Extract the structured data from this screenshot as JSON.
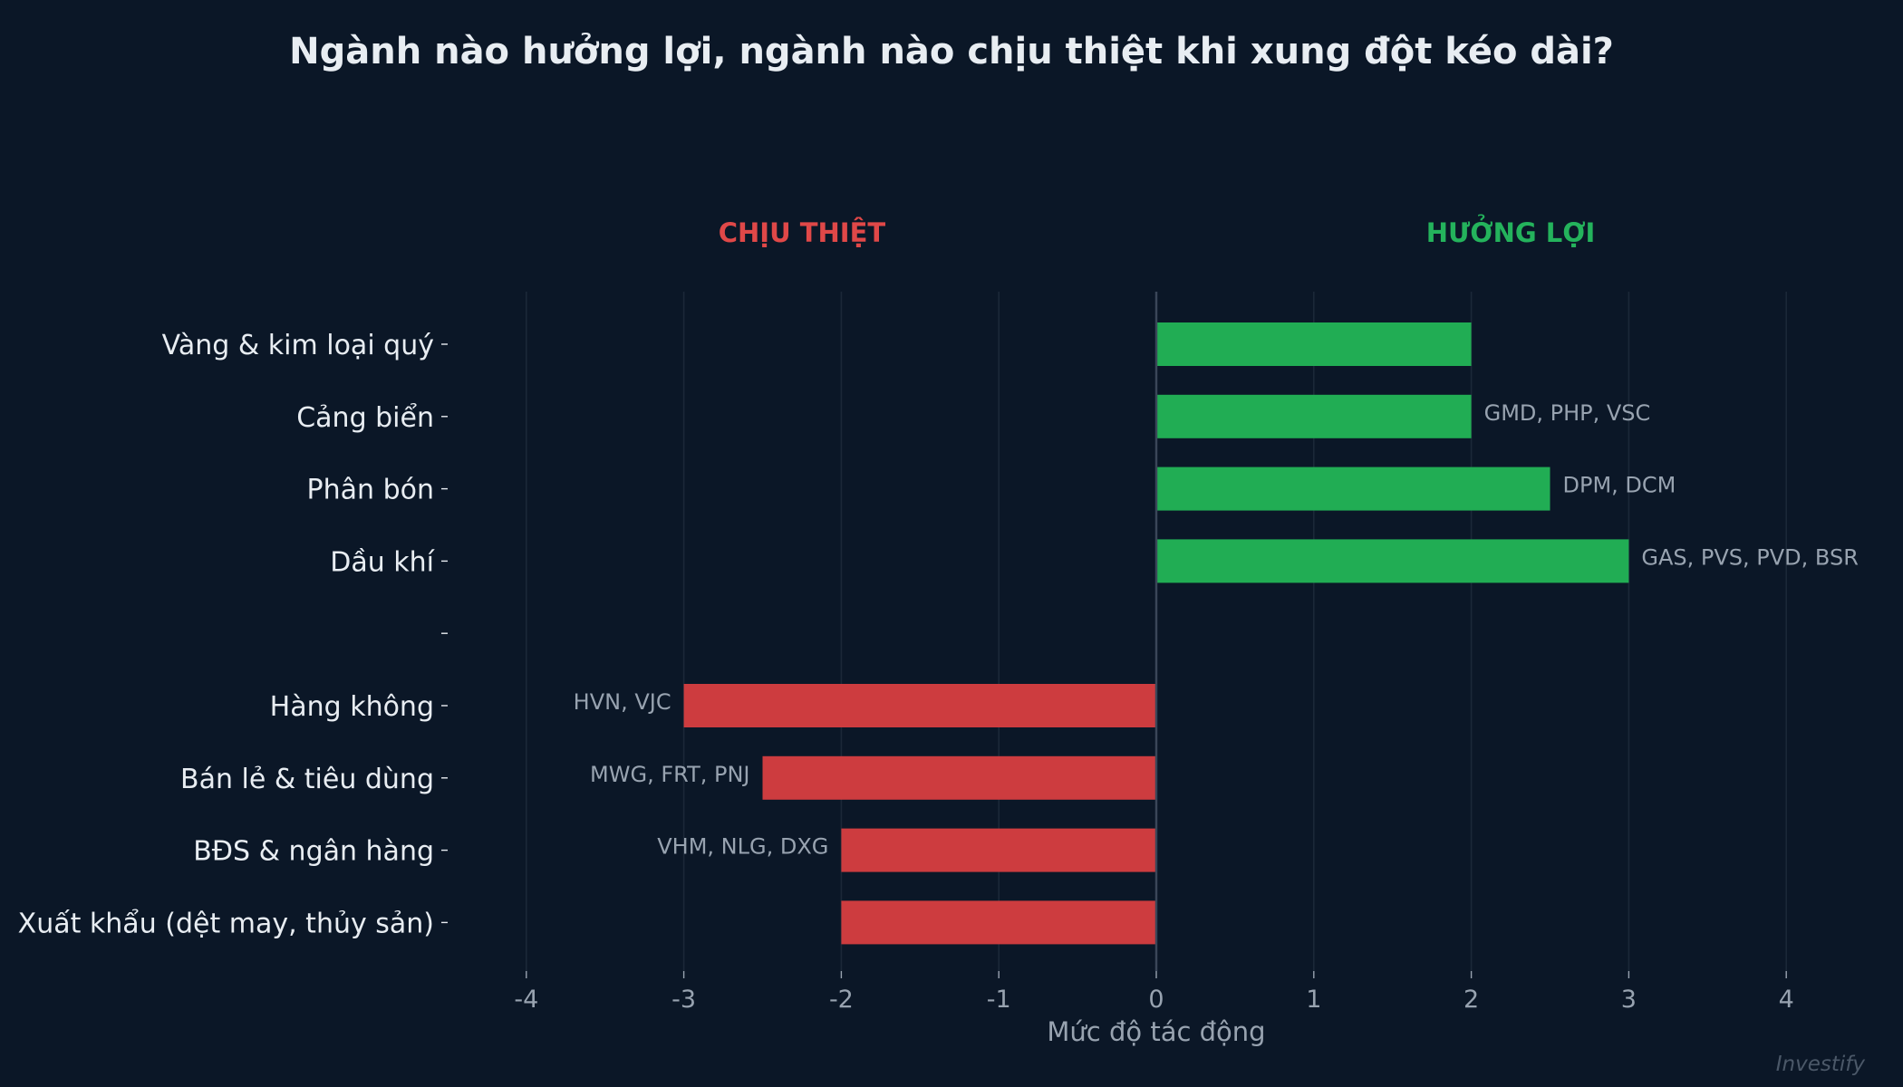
{
  "chart_data": {
    "type": "bar",
    "orientation": "horizontal",
    "title": "Ngành nào hưởng lợi, ngành nào chịu thiệt khi xung đột kéo dài?",
    "xlabel": "Mức độ tác động",
    "ylabel": "",
    "xlim": [
      -4,
      4
    ],
    "xticks": [
      "-4",
      "-3",
      "-2",
      "-1",
      "0",
      "1",
      "2",
      "3",
      "4"
    ],
    "grid": "vertical",
    "group_labels": {
      "negative": "CHỊU THIỆT",
      "positive": "HƯỞNG LỢI"
    },
    "categories": [
      "Vàng & kim loại quý",
      "Cảng biển",
      "Phân bón",
      "Dầu khí",
      "",
      "Hàng không",
      "Bán lẻ & tiêu dùng",
      "BĐS & ngân hàng",
      "Xuất khẩu (dệt may, thủy sản)"
    ],
    "values": [
      2,
      2,
      2.5,
      3,
      null,
      -3,
      -2.5,
      -2,
      -2
    ],
    "annotations": [
      "",
      "GMD, PHP, VSC",
      "DPM, DCM",
      "GAS, PVS, PVD, BSR",
      "",
      "HVN, VJC",
      "MWG, FRT, PNJ",
      "VHM, NLG, DXG",
      ""
    ]
  },
  "watermark": "Investify",
  "colors": {
    "background": "#0b1727",
    "positive": "#21ad54",
    "negative": "#cd3c3f",
    "positive_label": "#24b35c",
    "negative_label": "#e04848",
    "grid": "#1b2838",
    "zero_line": "#3a4658",
    "text": "#e8edf2",
    "muted": "#98a3b0"
  }
}
